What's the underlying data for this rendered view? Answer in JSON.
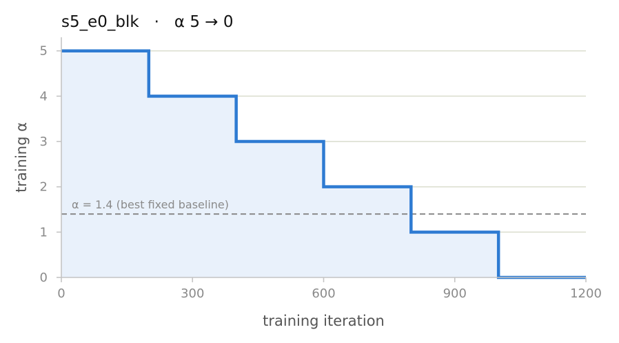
{
  "chart_data": {
    "type": "line",
    "step": "post",
    "title": "s5_e0_blk   ·   α 5 → 0",
    "xlabel": "training iteration",
    "ylabel": "training α",
    "xlim": [
      0,
      1200
    ],
    "ylim": [
      0,
      5.3
    ],
    "xticks": [
      0,
      300,
      600,
      900,
      1200
    ],
    "xtick_labels": [
      "0",
      "300",
      "600",
      "900",
      "1200"
    ],
    "yticks": [
      0,
      1,
      2,
      3,
      4,
      5
    ],
    "ytick_labels": [
      "0",
      "1",
      "2",
      "3",
      "4",
      "5"
    ],
    "grid": "horizontal",
    "series": [
      {
        "x": [
          0,
          200,
          400,
          600,
          800,
          1000,
          1200
        ],
        "y": [
          5,
          4,
          3,
          2,
          1,
          0,
          0
        ],
        "color": "#2e7bd2",
        "fill": "#e9f1fb"
      }
    ],
    "reference_line": {
      "y": 1.4,
      "label": "α = 1.4 (best fixed baseline)",
      "color": "#8a8a8a",
      "style": "dashed"
    },
    "colors": {
      "grid": "#dcdfd0",
      "axis": "#c4c4c4",
      "ticks": "#8a8a8a"
    }
  }
}
